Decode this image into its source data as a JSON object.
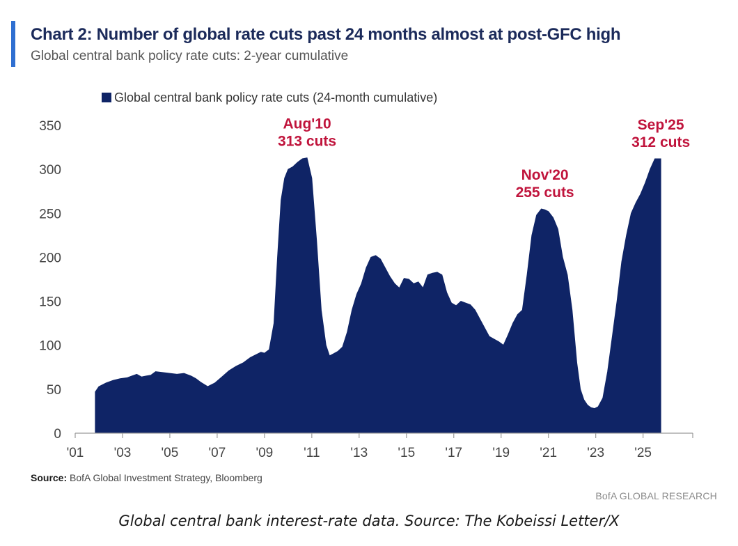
{
  "header": {
    "title": "Chart 2: Number of global rate cuts past 24 months almost at post-GFC high",
    "subtitle": "Global central bank policy rate cuts: 2-year cumulative"
  },
  "footer": {
    "source_label": "Source:",
    "source_text": "BofA Global Investment Strategy, Bloomberg",
    "brand": "BofA GLOBAL RESEARCH",
    "caption": "Global central bank interest-rate data. Source: The Kobeissi Letter/X"
  },
  "colors": {
    "area": "#0f2466",
    "annotation": "#c0143c",
    "accent": "#2f6fd1",
    "axis_text": "#444444"
  },
  "chart_data": {
    "type": "area",
    "title": "Chart 2: Number of global rate cuts past 24 months almost at post-GFC high",
    "subtitle": "Global central bank policy rate cuts: 2-year cumulative",
    "xlabel": "",
    "ylabel": "",
    "ylim": [
      0,
      350
    ],
    "yticks": [
      0,
      50,
      100,
      150,
      200,
      250,
      300,
      350
    ],
    "xlim": [
      2001,
      2027.1
    ],
    "xticks": [
      {
        "x": 2001,
        "label": "'01"
      },
      {
        "x": 2003,
        "label": "'03"
      },
      {
        "x": 2005,
        "label": "'05"
      },
      {
        "x": 2007,
        "label": "'07"
      },
      {
        "x": 2009,
        "label": "'09"
      },
      {
        "x": 2011,
        "label": "'11"
      },
      {
        "x": 2013,
        "label": "'13"
      },
      {
        "x": 2015,
        "label": "'15"
      },
      {
        "x": 2017,
        "label": "'17"
      },
      {
        "x": 2019,
        "label": "'19"
      },
      {
        "x": 2021,
        "label": "'21"
      },
      {
        "x": 2023,
        "label": "'23"
      },
      {
        "x": 2025,
        "label": "'25"
      }
    ],
    "grid": false,
    "legend": {
      "position": "top-left",
      "label": "Global central bank policy rate cuts (24-month cumulative)"
    },
    "series": [
      {
        "name": "Global central bank policy rate cuts (24-month cumulative)",
        "x": [
          2001.85,
          2002.0,
          2002.3,
          2002.6,
          2002.9,
          2003.2,
          2003.4,
          2003.6,
          2003.8,
          2004.0,
          2004.2,
          2004.4,
          2004.7,
          2005.0,
          2005.3,
          2005.6,
          2005.9,
          2006.1,
          2006.3,
          2006.6,
          2006.9,
          2007.2,
          2007.5,
          2007.8,
          2008.1,
          2008.4,
          2008.7,
          2008.85,
          2009.0,
          2009.2,
          2009.4,
          2009.55,
          2009.7,
          2009.85,
          2010.0,
          2010.2,
          2010.4,
          2010.6,
          2010.8,
          2011.0,
          2011.2,
          2011.4,
          2011.6,
          2011.75,
          2011.9,
          2012.1,
          2012.3,
          2012.5,
          2012.7,
          2012.9,
          2013.1,
          2013.3,
          2013.5,
          2013.7,
          2013.9,
          2014.1,
          2014.3,
          2014.5,
          2014.7,
          2014.9,
          2015.1,
          2015.3,
          2015.5,
          2015.7,
          2015.9,
          2016.1,
          2016.3,
          2016.5,
          2016.7,
          2016.9,
          2017.1,
          2017.3,
          2017.5,
          2017.7,
          2017.9,
          2018.1,
          2018.3,
          2018.5,
          2018.7,
          2018.9,
          2019.1,
          2019.3,
          2019.5,
          2019.7,
          2019.9,
          2020.1,
          2020.3,
          2020.5,
          2020.7,
          2020.85,
          2021.0,
          2021.2,
          2021.4,
          2021.6,
          2021.8,
          2022.0,
          2022.2,
          2022.35,
          2022.5,
          2022.65,
          2022.8,
          2022.95,
          2023.1,
          2023.3,
          2023.5,
          2023.7,
          2023.9,
          2024.1,
          2024.3,
          2024.5,
          2024.7,
          2024.9,
          2025.1,
          2025.3,
          2025.5,
          2025.75
        ],
        "values": [
          47,
          53,
          57,
          60,
          62,
          63,
          65,
          67,
          64,
          65,
          66,
          70,
          69,
          68,
          67,
          68,
          65,
          62,
          58,
          53,
          57,
          64,
          71,
          76,
          80,
          86,
          90,
          92,
          91,
          95,
          125,
          200,
          265,
          290,
          300,
          303,
          308,
          312,
          313,
          290,
          220,
          140,
          100,
          88,
          90,
          93,
          98,
          115,
          140,
          158,
          170,
          188,
          200,
          202,
          198,
          188,
          178,
          170,
          165,
          176,
          175,
          170,
          172,
          165,
          180,
          182,
          183,
          180,
          160,
          148,
          145,
          150,
          148,
          146,
          140,
          130,
          120,
          110,
          107,
          104,
          100,
          112,
          125,
          135,
          140,
          180,
          225,
          248,
          255,
          254,
          252,
          245,
          232,
          200,
          180,
          140,
          80,
          50,
          38,
          32,
          29,
          28,
          30,
          40,
          70,
          110,
          150,
          195,
          225,
          250,
          262,
          272,
          285,
          300,
          312,
          312
        ]
      }
    ],
    "annotations": [
      {
        "x": 2010.8,
        "value": 313,
        "date": "Aug'10",
        "text": "313 cuts"
      },
      {
        "x": 2020.85,
        "value": 255,
        "date": "Nov'20",
        "text": "255 cuts"
      },
      {
        "x": 2025.75,
        "value": 312,
        "date": "Sep'25",
        "text": "312 cuts"
      }
    ]
  }
}
